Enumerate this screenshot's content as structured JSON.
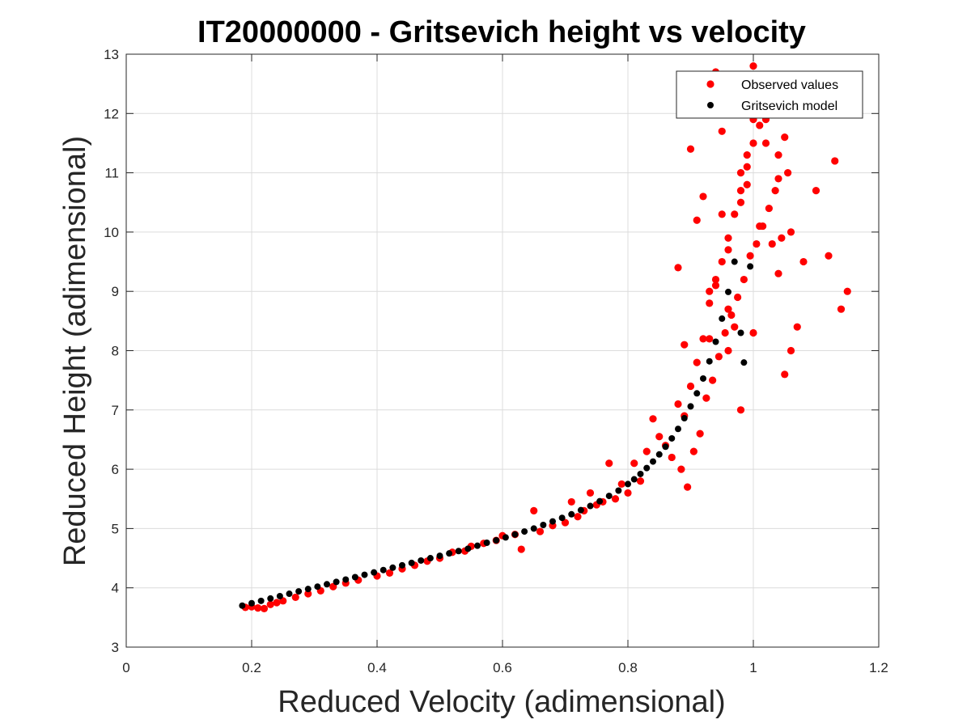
{
  "chart_data": {
    "type": "scatter",
    "title": "IT20000000 - Gritsevich height vs velocity",
    "xlabel": "Reduced Velocity (adimensional)",
    "ylabel": "Reduced Height (adimensional)",
    "xlim": [
      0,
      1.2
    ],
    "ylim": [
      3,
      13
    ],
    "xticks": [
      0,
      0.2,
      0.4,
      0.6,
      0.8,
      1,
      1.2
    ],
    "xtick_labels": [
      "0",
      "0.2",
      "0.4",
      "0.6",
      "0.8",
      "1",
      "1.2"
    ],
    "yticks": [
      3,
      4,
      5,
      6,
      7,
      8,
      9,
      10,
      11,
      12,
      13
    ],
    "ytick_labels": [
      "3",
      "4",
      "5",
      "6",
      "7",
      "8",
      "9",
      "10",
      "11",
      "12",
      "13"
    ],
    "grid": true,
    "legend_position": "top-right",
    "series": [
      {
        "name": "Observed values",
        "color": "#ff0000",
        "x": [
          0.19,
          0.2,
          0.21,
          0.22,
          0.23,
          0.24,
          0.25,
          0.27,
          0.29,
          0.31,
          0.33,
          0.35,
          0.37,
          0.4,
          0.42,
          0.44,
          0.46,
          0.48,
          0.5,
          0.52,
          0.54,
          0.55,
          0.57,
          0.59,
          0.6,
          0.62,
          0.63,
          0.65,
          0.66,
          0.68,
          0.7,
          0.71,
          0.72,
          0.73,
          0.74,
          0.75,
          0.76,
          0.77,
          0.78,
          0.79,
          0.8,
          0.81,
          0.82,
          0.83,
          0.84,
          0.85,
          0.86,
          0.87,
          0.88,
          0.885,
          0.89,
          0.895,
          0.9,
          0.905,
          0.91,
          0.915,
          0.92,
          0.925,
          0.93,
          0.935,
          0.94,
          0.945,
          0.95,
          0.955,
          0.96,
          0.965,
          0.97,
          0.975,
          0.98,
          0.985,
          0.99,
          0.995,
          1.0,
          1.005,
          1.01,
          1.015,
          1.02,
          1.025,
          1.03,
          1.035,
          1.04,
          1.045,
          1.05,
          1.055,
          1.06,
          1.07,
          1.08,
          1.1,
          1.12,
          1.13,
          1.14,
          1.15,
          0.88,
          0.9,
          0.92,
          0.94,
          0.96,
          0.98,
          1.0,
          1.02,
          1.04,
          1.06,
          0.89,
          0.91,
          0.93,
          0.95,
          0.97,
          0.99,
          1.01,
          1.03,
          1.05,
          0.92,
          0.94,
          0.96,
          0.98,
          1.0,
          1.02,
          1.04,
          0.93,
          0.95,
          0.97,
          0.99,
          1.01,
          1.03,
          0.94,
          0.96,
          0.98,
          1.0,
          1.02
        ],
        "y": [
          3.67,
          3.68,
          3.66,
          3.65,
          3.72,
          3.75,
          3.78,
          3.84,
          3.9,
          3.95,
          4.02,
          4.08,
          4.13,
          4.2,
          4.25,
          4.32,
          4.38,
          4.45,
          4.5,
          4.6,
          4.62,
          4.7,
          4.75,
          4.8,
          4.88,
          4.9,
          4.65,
          5.3,
          4.95,
          5.05,
          5.1,
          5.45,
          5.2,
          5.3,
          5.6,
          5.4,
          5.45,
          6.1,
          5.5,
          5.75,
          5.6,
          6.1,
          5.8,
          6.3,
          6.85,
          6.55,
          6.4,
          6.2,
          7.1,
          6.0,
          6.9,
          5.7,
          7.4,
          6.3,
          7.8,
          6.6,
          8.2,
          7.2,
          8.8,
          7.5,
          9.1,
          7.9,
          9.5,
          8.3,
          9.9,
          8.6,
          10.3,
          8.9,
          10.7,
          9.2,
          11.1,
          9.6,
          11.5,
          9.8,
          11.8,
          10.1,
          12.1,
          10.4,
          12.5,
          10.7,
          11.3,
          9.9,
          7.6,
          11.0,
          8.0,
          8.4,
          9.5,
          10.7,
          9.6,
          11.2,
          8.7,
          9.0,
          9.4,
          11.4,
          10.6,
          12.7,
          8.0,
          7.0,
          8.3,
          11.9,
          9.3,
          10.0,
          8.1,
          10.2,
          9.0,
          11.7,
          8.4,
          10.8,
          12.2,
          9.8,
          11.6,
          12.0,
          12.6,
          9.7,
          10.5,
          11.9,
          12.4,
          10.9,
          8.2,
          10.3,
          12.3,
          11.3,
          10.1,
          12.5,
          9.2,
          8.7,
          11.0,
          12.8,
          11.5
        ],
        "marker": "circle"
      },
      {
        "name": "Gritsevich model",
        "color": "#000000",
        "x": [
          0.185,
          0.2,
          0.215,
          0.23,
          0.245,
          0.26,
          0.275,
          0.29,
          0.305,
          0.32,
          0.335,
          0.35,
          0.365,
          0.38,
          0.395,
          0.41,
          0.425,
          0.44,
          0.455,
          0.47,
          0.485,
          0.5,
          0.515,
          0.53,
          0.545,
          0.56,
          0.575,
          0.59,
          0.605,
          0.62,
          0.635,
          0.65,
          0.665,
          0.68,
          0.695,
          0.71,
          0.725,
          0.74,
          0.755,
          0.77,
          0.785,
          0.8,
          0.81,
          0.82,
          0.83,
          0.84,
          0.85,
          0.86,
          0.87,
          0.88,
          0.89,
          0.9,
          0.91,
          0.92,
          0.93,
          0.94,
          0.95,
          0.96,
          0.97,
          0.98,
          0.985,
          0.995
        ],
        "y": [
          3.7,
          3.74,
          3.78,
          3.82,
          3.86,
          3.9,
          3.94,
          3.98,
          4.02,
          4.06,
          4.1,
          4.14,
          4.18,
          4.22,
          4.26,
          4.3,
          4.34,
          4.38,
          4.42,
          4.46,
          4.5,
          4.54,
          4.58,
          4.62,
          4.66,
          4.71,
          4.76,
          4.8,
          4.85,
          4.9,
          4.95,
          5.0,
          5.06,
          5.12,
          5.18,
          5.24,
          5.31,
          5.38,
          5.46,
          5.55,
          5.64,
          5.75,
          5.83,
          5.92,
          6.02,
          6.13,
          6.25,
          6.38,
          6.52,
          6.68,
          6.86,
          7.06,
          7.28,
          7.53,
          7.82,
          8.15,
          8.54,
          8.99,
          9.5,
          8.3,
          7.8,
          9.42
        ],
        "marker": "circle"
      }
    ]
  }
}
